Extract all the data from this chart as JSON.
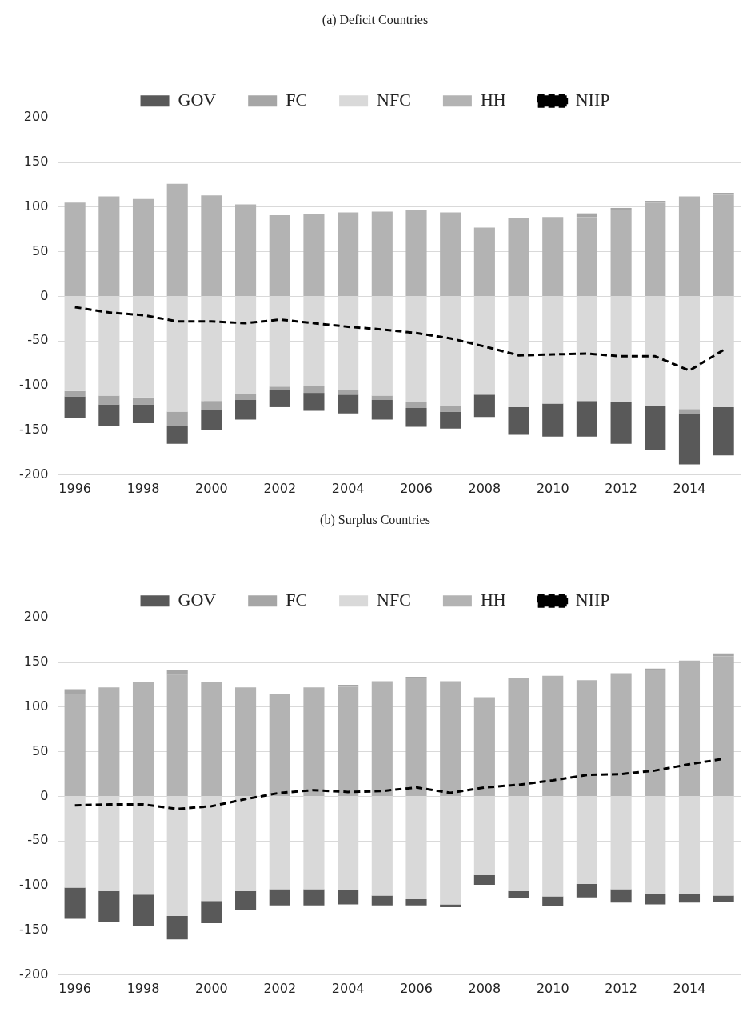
{
  "chart_data": [
    {
      "type": "bar",
      "title": "(a) Deficit Countries",
      "categories": [
        "1996",
        null,
        "1998",
        null,
        "2000",
        null,
        "2002",
        null,
        "2004",
        null,
        "2006",
        null,
        "2008",
        null,
        "2010",
        null,
        "2012",
        null,
        "2014",
        null
      ],
      "stacked": true,
      "ylim": [
        -200,
        200
      ],
      "yticks": [
        -200,
        -150,
        -100,
        -50,
        0,
        50,
        100,
        150,
        200
      ],
      "grid": "y",
      "legend": "top",
      "series": [
        {
          "name": "HH",
          "color": "#b3b3b3",
          "values": [
            105,
            112,
            109,
            126,
            113,
            103,
            91,
            92,
            94,
            95,
            97,
            94,
            77,
            88,
            89,
            89,
            97,
            105,
            112,
            114
          ]
        },
        {
          "name": "NFC",
          "color": "#d9d9d9",
          "values": [
            -106,
            -111,
            -113,
            -129,
            -117,
            -109,
            -101,
            -100,
            -105,
            -111,
            -118,
            -123,
            -110,
            -124,
            -120,
            -117,
            -118,
            -123,
            -126,
            -124
          ]
        },
        {
          "name": "FC",
          "color": "#a6a6a6",
          "values": [
            -6,
            -10,
            -8,
            -16,
            -10,
            -7,
            -4,
            -8,
            -5,
            -5,
            -7,
            -6,
            0,
            0,
            0,
            4,
            2,
            2,
            -6,
            2
          ]
        },
        {
          "name": "GOV",
          "color": "#595959",
          "values": [
            -24,
            -24,
            -21,
            -20,
            -23,
            -22,
            -19,
            -20,
            -21,
            -22,
            -21,
            -19,
            -25,
            -31,
            -37,
            -40,
            -47,
            -49,
            -56,
            -54
          ]
        },
        {
          "name": "NIIP",
          "type": "line",
          "color": "#000000",
          "line_style": "dashed",
          "marker": "none",
          "values": [
            -12,
            -18,
            -21,
            -28,
            -28,
            -30,
            -26,
            -30,
            -34,
            -37,
            -41,
            -47,
            -56,
            -66,
            -65,
            -64,
            -67,
            -67,
            -83,
            -60
          ]
        }
      ]
    },
    {
      "type": "bar",
      "title": "(b) Surplus Countries",
      "categories": [
        "1996",
        null,
        "1998",
        null,
        "2000",
        null,
        "2002",
        null,
        "2004",
        null,
        "2006",
        null,
        "2008",
        null,
        "2010",
        null,
        "2012",
        null,
        "2014",
        null
      ],
      "stacked": true,
      "ylim": [
        -200,
        200
      ],
      "yticks": [
        -200,
        -150,
        -100,
        -50,
        0,
        50,
        100,
        150,
        200
      ],
      "grid": "y",
      "legend": "top",
      "series": [
        {
          "name": "HH",
          "color": "#b3b3b3",
          "values": [
            115,
            122,
            128,
            136,
            128,
            122,
            115,
            122,
            123,
            129,
            132,
            129,
            111,
            132,
            135,
            130,
            138,
            141,
            152,
            157
          ]
        },
        {
          "name": "NFC",
          "color": "#d9d9d9",
          "values": [
            -102,
            -106,
            -110,
            -134,
            -117,
            -106,
            -104,
            -104,
            -105,
            -111,
            -115,
            -121,
            -88,
            -106,
            -112,
            -98,
            -104,
            -109,
            -109,
            -111
          ]
        },
        {
          "name": "FC",
          "color": "#a6a6a6",
          "values": [
            5,
            0,
            0,
            5,
            0,
            0,
            0,
            0,
            2,
            0,
            2,
            0,
            0,
            0,
            0,
            0,
            0,
            2,
            0,
            3
          ]
        },
        {
          "name": "GOV",
          "color": "#595959",
          "values": [
            -35,
            -35,
            -35,
            -26,
            -25,
            -21,
            -18,
            -18,
            -16,
            -11,
            -7,
            -3,
            -11,
            -8,
            -11,
            -15,
            -15,
            -12,
            -10,
            -7
          ]
        },
        {
          "name": "NIIP",
          "type": "line",
          "color": "#000000",
          "line_style": "dashed",
          "marker": "none",
          "values": [
            -10,
            -9,
            -9,
            -14,
            -11,
            -3,
            4,
            7,
            5,
            6,
            10,
            4,
            10,
            13,
            18,
            24,
            25,
            29,
            36,
            42
          ]
        }
      ]
    }
  ]
}
